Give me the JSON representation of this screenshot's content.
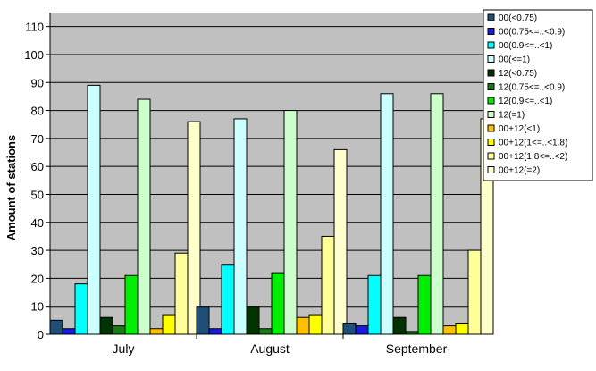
{
  "chart_data": {
    "type": "bar",
    "title": "",
    "xlabel": "",
    "ylabel": "Amount of stations",
    "categories": [
      "July",
      "August",
      "September"
    ],
    "ylim": [
      0,
      115
    ],
    "yticks": [
      0,
      10,
      20,
      30,
      40,
      50,
      60,
      70,
      80,
      90,
      100,
      110
    ],
    "grid": true,
    "legend_position": "top-right",
    "plot_background": "#c0c0c0",
    "series": [
      {
        "name": "00(<0.75)",
        "color": "#1f4e79",
        "values": [
          5,
          10,
          4
        ]
      },
      {
        "name": "00(0.75<=..<0.9)",
        "color": "#1a1adb",
        "values": [
          2,
          2,
          3
        ]
      },
      {
        "name": "00(0.9<=..<1)",
        "color": "#00ffff",
        "values": [
          18,
          25,
          21
        ]
      },
      {
        "name": "00(<=1)",
        "color": "#ccffff",
        "values": [
          89,
          77,
          86
        ]
      },
      {
        "name": "12(<0.75)",
        "color": "#003300",
        "values": [
          6,
          10,
          6
        ]
      },
      {
        "name": "12(0.75<=..<0.9)",
        "color": "#1a7a1a",
        "values": [
          3,
          2,
          1
        ]
      },
      {
        "name": "12(0.9<=..<1)",
        "color": "#00ee00",
        "values": [
          21,
          22,
          21
        ]
      },
      {
        "name": "12(=1)",
        "color": "#ccffcc",
        "values": [
          84,
          80,
          86
        ]
      },
      {
        "name": "00+12(<1)",
        "color": "#ffc000",
        "values": [
          2,
          6,
          3
        ]
      },
      {
        "name": "00+12(1<=..<1.8)",
        "color": "#ffff00",
        "values": [
          7,
          7,
          4
        ]
      },
      {
        "name": "00+12(1.8<=..<2)",
        "color": "#ffff99",
        "values": [
          29,
          35,
          30
        ]
      },
      {
        "name": "00+12(=2)",
        "color": "#ffffcc",
        "values": [
          76,
          66,
          77
        ]
      }
    ]
  }
}
